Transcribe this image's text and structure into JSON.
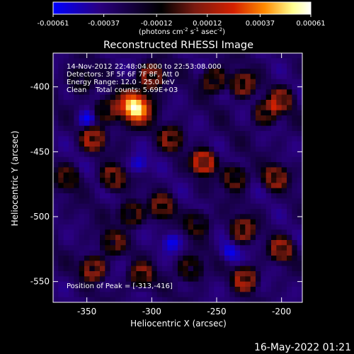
{
  "chart_data": {
    "type": "heatmap",
    "title": "Reconstructed RHESSI Image",
    "xlabel": "Heliocentric X (arcsec)",
    "ylabel": "Heliocentric Y (arcsec)",
    "xlim": [
      -376,
      -184
    ],
    "ylim": [
      -566,
      -374
    ],
    "x_ticks": [
      -350,
      -300,
      -250,
      -200
    ],
    "x_tick_labels": [
      "-350",
      "-300",
      "-250",
      "-200"
    ],
    "y_ticks": [
      -550,
      -500,
      -450,
      -400
    ],
    "y_tick_labels": [
      "-550",
      "-500",
      "-450",
      "-400"
    ],
    "colorbar": {
      "min": -0.00061,
      "max": 0.00061,
      "tick_values": [
        -0.00061,
        -0.00037,
        -0.00012,
        0.00012,
        0.00037,
        0.00061
      ],
      "tick_labels": [
        "-0.00061",
        "-0.00037",
        "-0.00012",
        "0.00012",
        "0.00037",
        "0.00061"
      ],
      "label_prefix": "(photons cm",
      "label_sup1": "-2",
      "label_mid1": " s",
      "label_sup2": "-1",
      "label_mid2": " asec",
      "label_sup3": "-2",
      "label_suffix": ")",
      "colors": [
        "#0000ff",
        "#2a0080",
        "#000000",
        "#7a1a10",
        "#d42000",
        "#ff8a00",
        "#ffff90",
        "#ffffff"
      ]
    },
    "annotations": [
      "14-Nov-2012 22:48:04.000 to 22:53:08.000",
      "Detectors: 3F 5F 6F 7F 8F, Att 0",
      "Energy Range: 12.0 - 25.0 keV",
      "Clean    Total counts: 5.69E+03"
    ],
    "peak_label": "Position of Peak = [-313,-416]",
    "peak": {
      "x": -313,
      "y": -416
    },
    "sources": [
      {
        "x": -313,
        "y": -416,
        "amp": 1.0
      },
      {
        "x": -260,
        "y": -458,
        "amp": 0.7
      },
      {
        "x": -345,
        "y": -440,
        "amp": 0.55
      },
      {
        "x": -300,
        "y": -392,
        "amp": 0.55
      },
      {
        "x": -230,
        "y": -398,
        "amp": 0.5
      },
      {
        "x": -200,
        "y": -410,
        "amp": 0.45
      },
      {
        "x": -252,
        "y": -395,
        "amp": 0.45
      },
      {
        "x": -285,
        "y": -440,
        "amp": 0.45
      },
      {
        "x": -205,
        "y": -470,
        "amp": 0.5
      },
      {
        "x": -236,
        "y": -470,
        "amp": 0.45
      },
      {
        "x": -365,
        "y": -470,
        "amp": 0.35
      },
      {
        "x": -330,
        "y": -470,
        "amp": 0.5
      },
      {
        "x": -316,
        "y": -498,
        "amp": 0.45
      },
      {
        "x": -292,
        "y": -492,
        "amp": 0.45
      },
      {
        "x": -265,
        "y": -505,
        "amp": 0.35
      },
      {
        "x": -230,
        "y": -510,
        "amp": 0.5
      },
      {
        "x": -200,
        "y": -525,
        "amp": 0.5
      },
      {
        "x": -345,
        "y": -540,
        "amp": 0.55
      },
      {
        "x": -308,
        "y": -545,
        "amp": 0.45
      },
      {
        "x": -270,
        "y": -540,
        "amp": 0.4
      },
      {
        "x": -228,
        "y": -548,
        "amp": 0.55
      },
      {
        "x": -212,
        "y": -420,
        "amp": 0.45
      },
      {
        "x": -355,
        "y": -395,
        "amp": 0.3
      },
      {
        "x": -335,
        "y": -418,
        "amp": 0.35
      },
      {
        "x": -330,
        "y": -520,
        "amp": 0.4
      }
    ],
    "dips": [
      {
        "x": -350,
        "y": -425
      },
      {
        "x": -285,
        "y": -520
      },
      {
        "x": -240,
        "y": -528
      },
      {
        "x": -310,
        "y": -460
      }
    ]
  },
  "timestamp": "16-May-2022 01:21"
}
